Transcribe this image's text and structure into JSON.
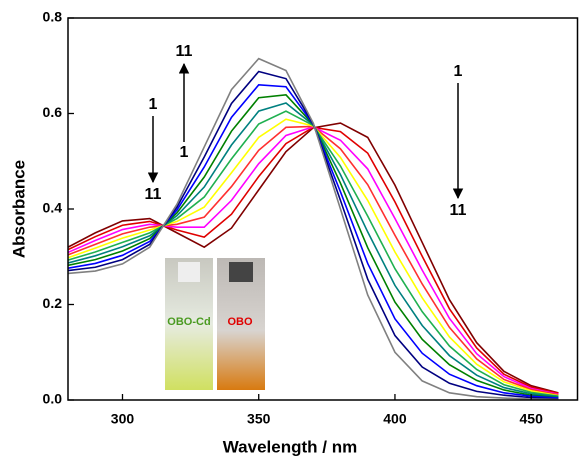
{
  "chart_data": {
    "type": "line",
    "xlabel": "Wavelength / nm",
    "ylabel": "Absorbance",
    "xlim": [
      280,
      467
    ],
    "ylim": [
      0,
      0.8
    ],
    "xticks": [
      300,
      350,
      400,
      450
    ],
    "yticks": [
      {
        "value": 0,
        "label": "0.0"
      },
      0.2,
      0.4,
      0.6,
      0.8
    ],
    "annotations": {
      "left": [
        "1",
        "11"
      ],
      "middle": [
        "11",
        "1"
      ],
      "right": [
        "1",
        "11"
      ]
    },
    "inset_labels": [
      "OBO-Cd",
      "OBO"
    ],
    "x": [
      280,
      290,
      300,
      310,
      320,
      330,
      340,
      350,
      360,
      370,
      380,
      390,
      400,
      410,
      420,
      430,
      440,
      450,
      460
    ],
    "series": [
      {
        "color": "#800000",
        "values": [
          0.32,
          0.35,
          0.375,
          0.38,
          0.35,
          0.32,
          0.36,
          0.44,
          0.52,
          0.57,
          0.58,
          0.55,
          0.45,
          0.33,
          0.21,
          0.12,
          0.06,
          0.03,
          0.015
        ]
      },
      {
        "color": "#e00000",
        "values": [
          0.315,
          0.342,
          0.366,
          0.374,
          0.356,
          0.341,
          0.389,
          0.468,
          0.537,
          0.571,
          0.562,
          0.517,
          0.415,
          0.301,
          0.191,
          0.109,
          0.054,
          0.027,
          0.014
        ]
      },
      {
        "color": "#ff00ff",
        "values": [
          0.309,
          0.334,
          0.357,
          0.368,
          0.362,
          0.362,
          0.418,
          0.495,
          0.554,
          0.572,
          0.544,
          0.484,
          0.38,
          0.272,
          0.171,
          0.097,
          0.049,
          0.024,
          0.012
        ]
      },
      {
        "color": "#ff3030",
        "values": [
          0.304,
          0.326,
          0.348,
          0.362,
          0.368,
          0.383,
          0.447,
          0.523,
          0.571,
          0.573,
          0.526,
          0.451,
          0.345,
          0.243,
          0.152,
          0.086,
          0.043,
          0.022,
          0.011
        ]
      },
      {
        "color": "#ffff00",
        "values": [
          0.298,
          0.318,
          0.339,
          0.356,
          0.374,
          0.404,
          0.476,
          0.55,
          0.588,
          0.574,
          0.508,
          0.418,
          0.31,
          0.214,
          0.132,
          0.075,
          0.038,
          0.019,
          0.009
        ]
      },
      {
        "color": "#20b050",
        "values": [
          0.293,
          0.31,
          0.33,
          0.35,
          0.38,
          0.425,
          0.505,
          0.578,
          0.605,
          0.575,
          0.49,
          0.385,
          0.275,
          0.185,
          0.113,
          0.064,
          0.032,
          0.016,
          0.008
        ]
      },
      {
        "color": "#008080",
        "values": [
          0.287,
          0.302,
          0.321,
          0.344,
          0.386,
          0.446,
          0.534,
          0.605,
          0.622,
          0.576,
          0.472,
          0.352,
          0.24,
          0.156,
          0.093,
          0.052,
          0.026,
          0.013,
          0.007
        ]
      },
      {
        "color": "#008000",
        "values": [
          0.282,
          0.294,
          0.312,
          0.338,
          0.392,
          0.467,
          0.563,
          0.633,
          0.639,
          0.577,
          0.454,
          0.319,
          0.205,
          0.127,
          0.074,
          0.041,
          0.021,
          0.01,
          0.005
        ]
      },
      {
        "color": "#0000ff",
        "values": [
          0.276,
          0.286,
          0.303,
          0.332,
          0.398,
          0.488,
          0.592,
          0.66,
          0.656,
          0.578,
          0.436,
          0.286,
          0.17,
          0.098,
          0.054,
          0.03,
          0.015,
          0.008,
          0.004
        ]
      },
      {
        "color": "#000080",
        "values": [
          0.271,
          0.278,
          0.294,
          0.326,
          0.404,
          0.509,
          0.621,
          0.688,
          0.673,
          0.579,
          0.418,
          0.253,
          0.135,
          0.069,
          0.035,
          0.018,
          0.01,
          0.005,
          0.002
        ]
      },
      {
        "color": "#808080",
        "values": [
          0.265,
          0.27,
          0.285,
          0.32,
          0.41,
          0.53,
          0.65,
          0.715,
          0.69,
          0.58,
          0.4,
          0.22,
          0.1,
          0.04,
          0.015,
          0.007,
          0.004,
          0.002,
          0.001
        ]
      }
    ]
  }
}
